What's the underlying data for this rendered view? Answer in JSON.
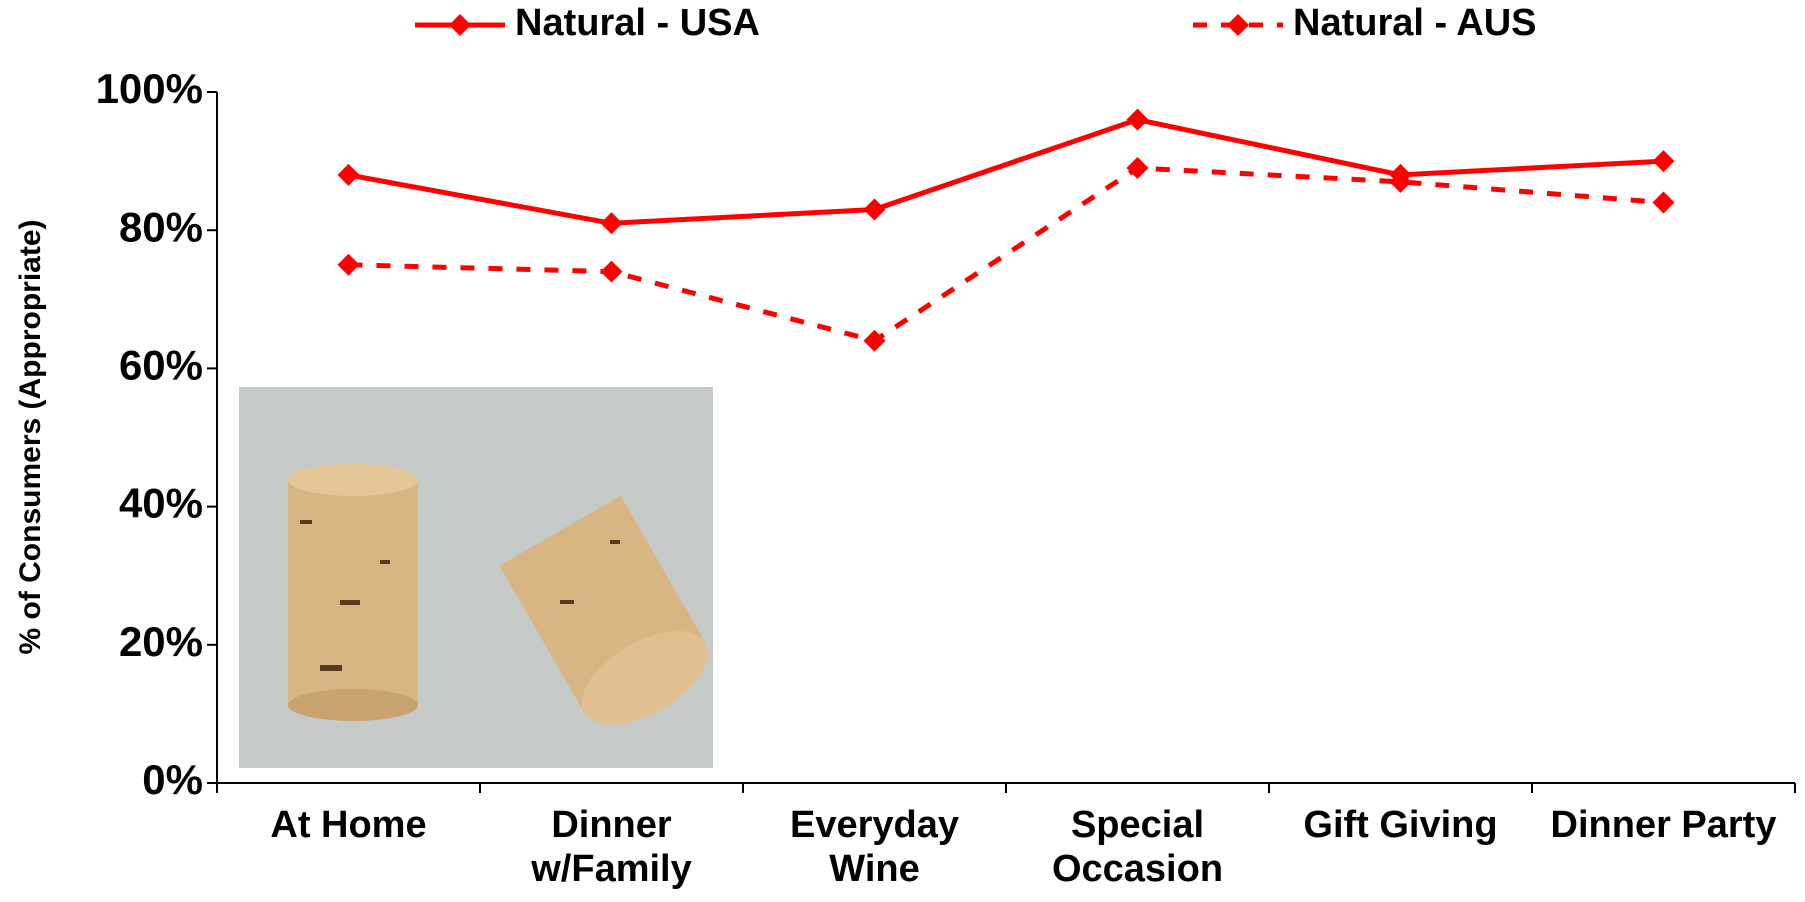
{
  "chart_data": {
    "type": "line",
    "y_label": "% of Consumers (Appropriate)",
    "categories": [
      "At Home",
      "Dinner w/Family",
      "Everyday Wine",
      "Special Occasion",
      "Gift Giving",
      "Dinner Party"
    ],
    "series": [
      {
        "name": "Natural - USA",
        "color": "#ff0000",
        "line_style": "solid",
        "marker": "diamond",
        "values": [
          88,
          81,
          83,
          96,
          88,
          90
        ]
      },
      {
        "name": "Natural - AUS",
        "color": "#ff0000",
        "line_style": "dotted",
        "marker": "diamond",
        "values": [
          75,
          74,
          64,
          89,
          87,
          84
        ]
      }
    ],
    "ylim": [
      0,
      100
    ],
    "yticks": [
      {
        "value": 0,
        "label": "0%"
      },
      {
        "value": 20,
        "label": "20%"
      },
      {
        "value": 40,
        "label": "40%"
      },
      {
        "value": 60,
        "label": "60%"
      },
      {
        "value": 80,
        "label": "80%"
      },
      {
        "value": 100,
        "label": "100%"
      }
    ],
    "legend": "top"
  }
}
